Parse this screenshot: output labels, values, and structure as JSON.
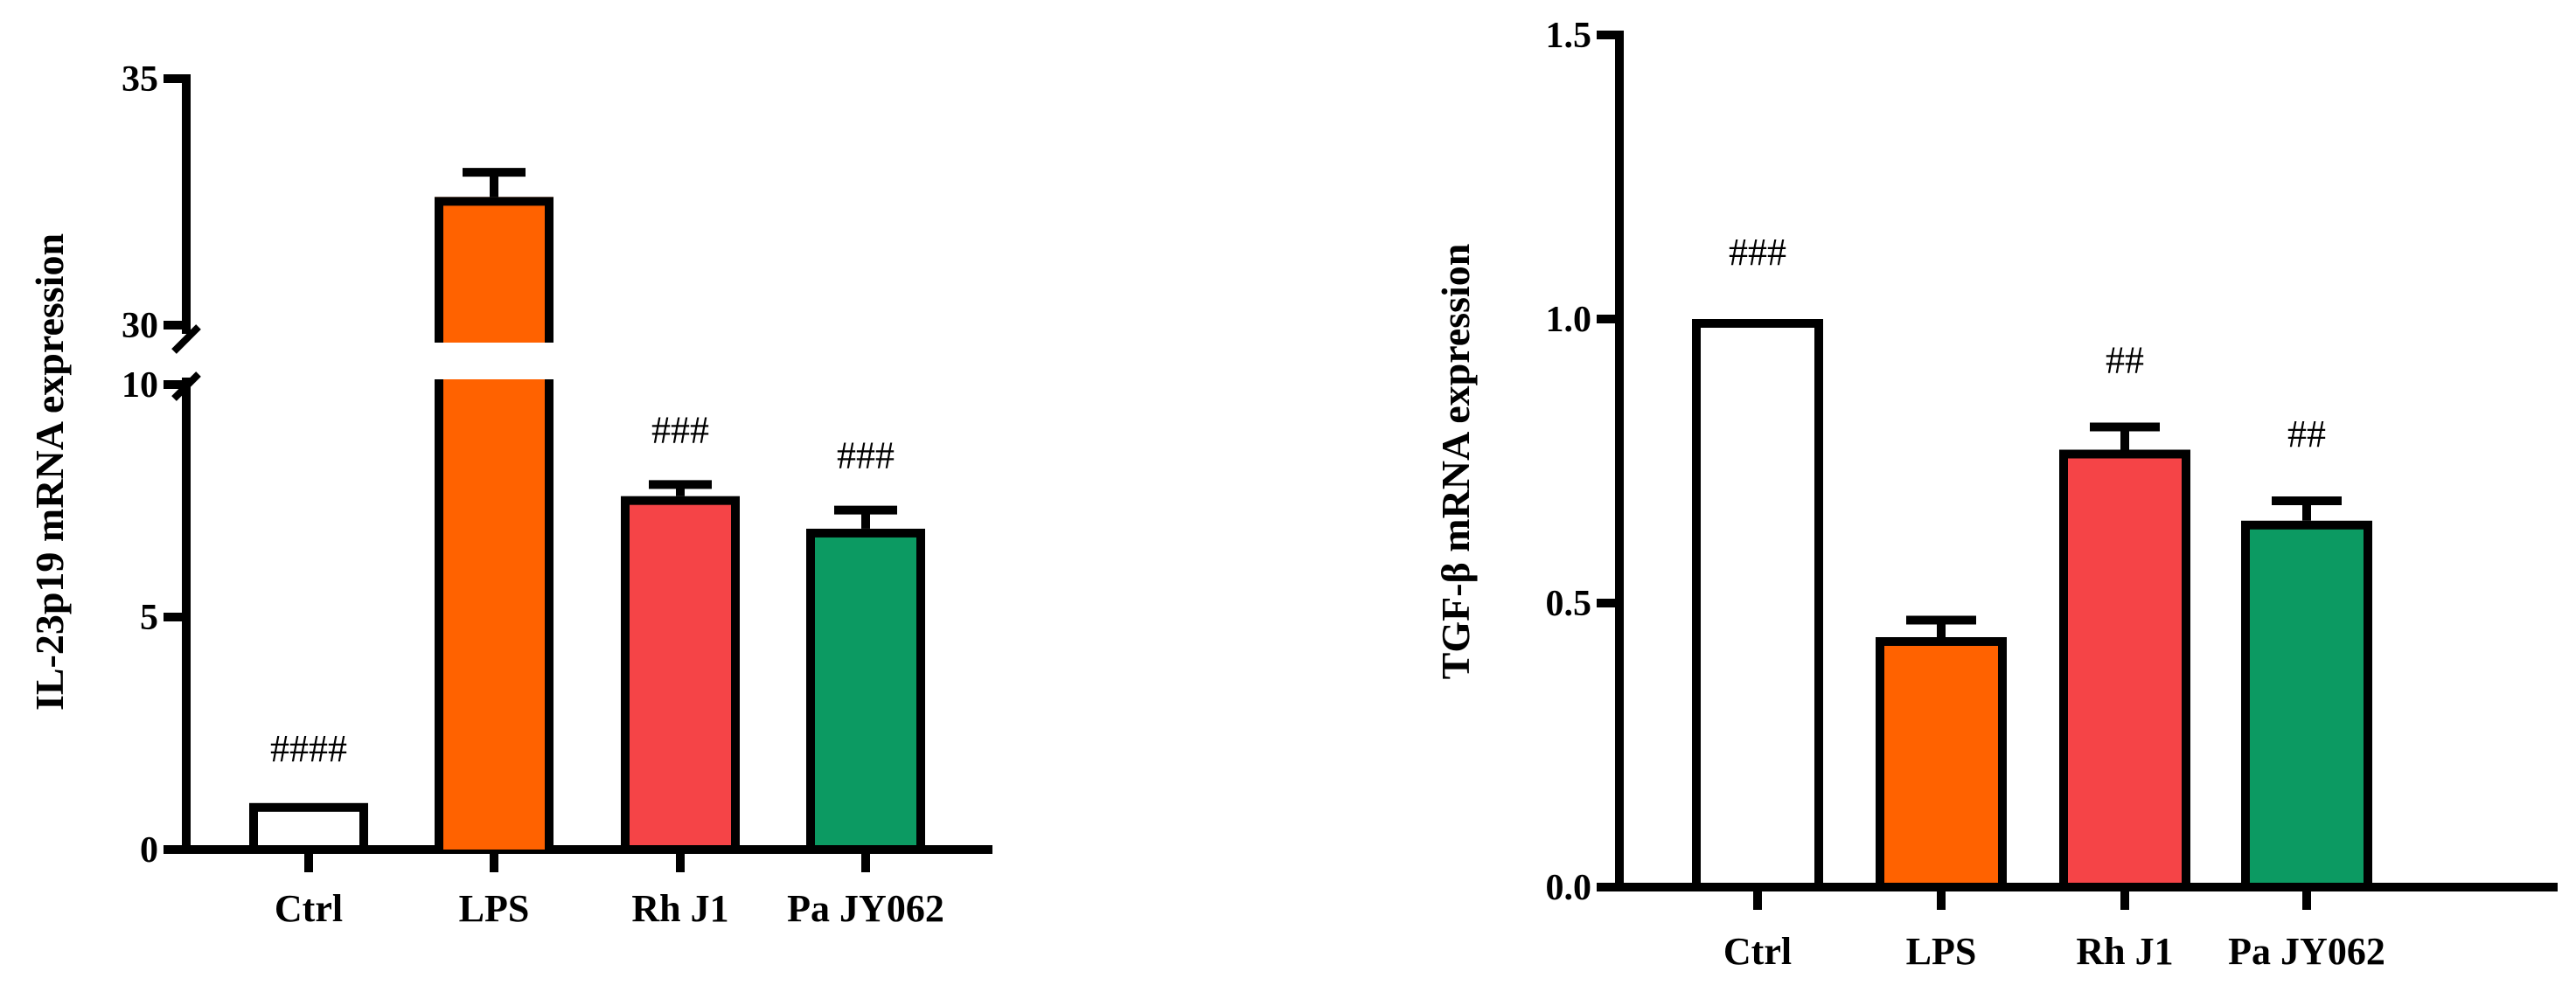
{
  "chart_data": [
    {
      "type": "bar",
      "ylabel": "IL-23p19 mRNA expression",
      "categories": [
        "Ctrl",
        "LPS",
        "Rh J1",
        "Pa JY062"
      ],
      "values": [
        1.0,
        32.6,
        7.6,
        6.9
      ],
      "errors": [
        0,
        0.5,
        0.25,
        0.4
      ],
      "significance": [
        "####",
        "",
        "###",
        "###"
      ],
      "colors": [
        "#ffffff",
        "#ff6200",
        "#f54447",
        "#0c9a62"
      ],
      "axis_break": {
        "lower_max": 10,
        "upper_min": 30
      },
      "ylim": [
        0,
        35
      ],
      "yticks": [
        0,
        5,
        10,
        30,
        35
      ]
    },
    {
      "type": "bar",
      "ylabel": "TGF-β mRNA expression",
      "categories": [
        "Ctrl",
        "LPS",
        "Rh J1",
        "Pa JY062"
      ],
      "values": [
        1.0,
        0.44,
        0.77,
        0.645
      ],
      "errors": [
        0,
        0.03,
        0.04,
        0.035
      ],
      "significance": [
        "###",
        "",
        "##",
        "##"
      ],
      "colors": [
        "#ffffff",
        "#ff6200",
        "#f54447",
        "#0c9a62"
      ],
      "ylim": [
        0,
        1.5
      ],
      "yticks": [
        "0.0",
        "0.5",
        "1.0",
        "1.5"
      ]
    }
  ]
}
